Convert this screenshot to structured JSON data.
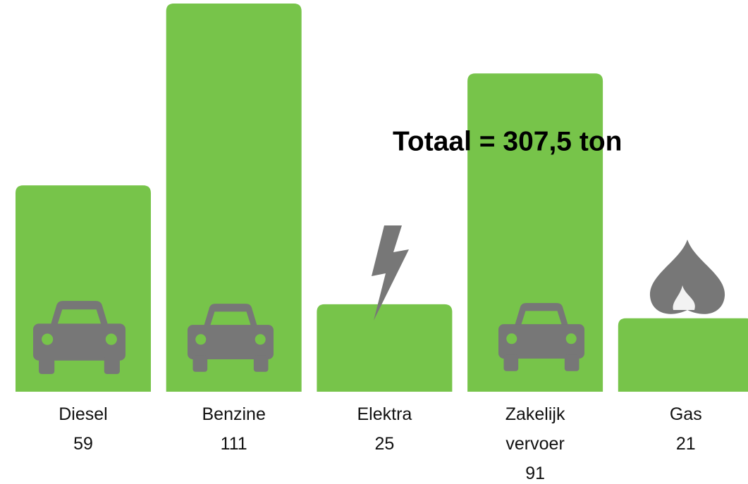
{
  "chart_data": {
    "type": "bar",
    "annotation": "Totaal = 307,5 ton",
    "categories": [
      "Diesel",
      "Benzine",
      "Elektra",
      "Zakelijk vervoer",
      "Gas"
    ],
    "values": [
      59,
      111,
      25,
      91,
      21
    ],
    "color": "#77c44a"
  }
}
